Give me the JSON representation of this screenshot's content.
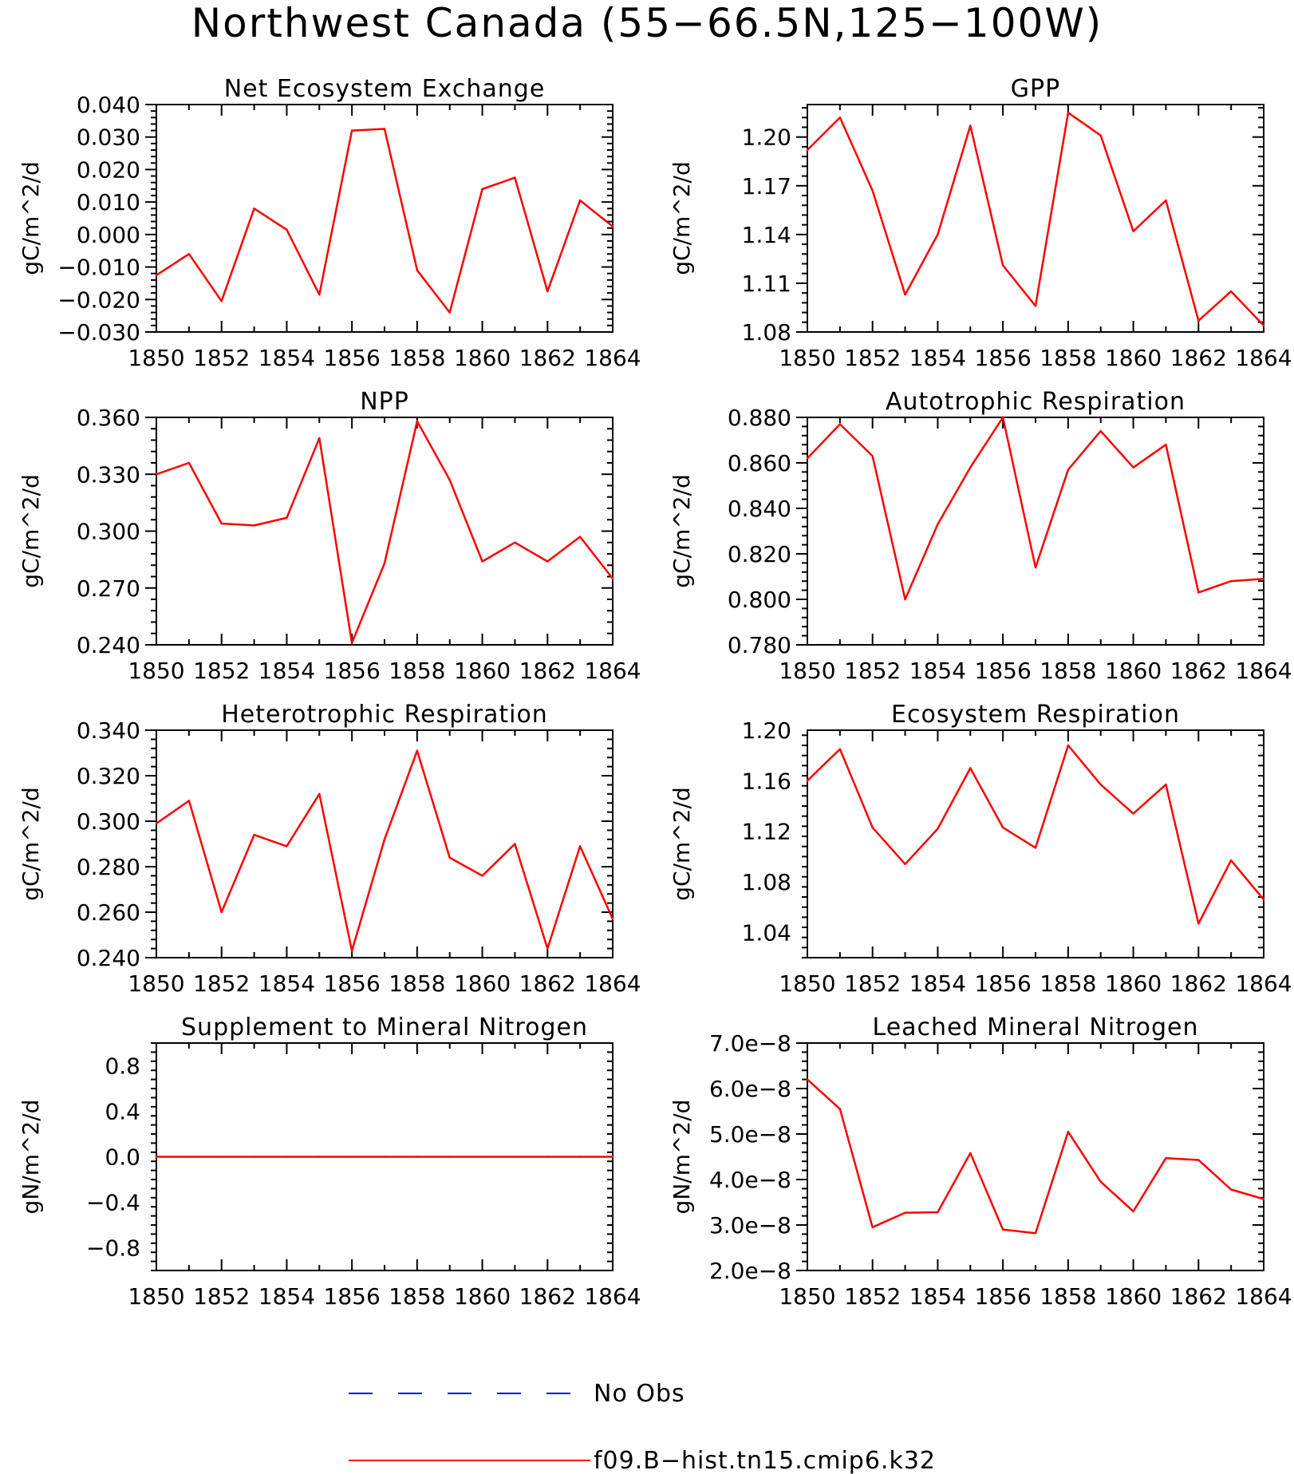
{
  "title": "Northwest Canada (55−66.5N,125−100W)",
  "colors": {
    "model": "#ff0000",
    "obs": "#0000ff",
    "axes": "#000000"
  },
  "legend": {
    "obs_label": "No Obs",
    "model_label": "f09.B−hist.tn15.cmip6.k32"
  },
  "chart_data": [
    {
      "type": "line",
      "title": "Net Ecosystem Exchange",
      "ylabel": "gC/m^2/d",
      "x": [
        1850,
        1851,
        1852,
        1853,
        1854,
        1855,
        1856,
        1857,
        1858,
        1859,
        1860,
        1861,
        1862,
        1863,
        1864
      ],
      "xticks": [
        1850,
        1852,
        1854,
        1856,
        1858,
        1860,
        1862,
        1864
      ],
      "xtick_labels": [
        "1850",
        "1852",
        "1854",
        "1856",
        "1858",
        "1860",
        "1862",
        "1864"
      ],
      "xlim": [
        1850,
        1864
      ],
      "ylim": [
        -0.03,
        0.04
      ],
      "yticks": [
        -0.03,
        -0.02,
        -0.01,
        0.0,
        0.01,
        0.02,
        0.03,
        0.04
      ],
      "ytick_labels": [
        "−0.030",
        "−0.020",
        "−0.010",
        "0.000",
        "0.010",
        "0.020",
        "0.030",
        "0.040"
      ],
      "series": [
        {
          "values": [
            -0.0125,
            -0.006,
            -0.0205,
            0.008,
            0.0015,
            -0.0185,
            0.032,
            0.0325,
            -0.011,
            -0.024,
            0.014,
            0.0175,
            -0.0175,
            0.0105,
            0.0025
          ]
        }
      ]
    },
    {
      "type": "line",
      "title": "GPP",
      "ylabel": "gC/m^2/d",
      "x": [
        1850,
        1851,
        1852,
        1853,
        1854,
        1855,
        1856,
        1857,
        1858,
        1859,
        1860,
        1861,
        1862,
        1863,
        1864
      ],
      "xticks": [
        1850,
        1852,
        1854,
        1856,
        1858,
        1860,
        1862,
        1864
      ],
      "xtick_labels": [
        "1850",
        "1852",
        "1854",
        "1856",
        "1858",
        "1860",
        "1862",
        "1864"
      ],
      "xlim": [
        1850,
        1864
      ],
      "ylim": [
        1.08,
        1.22
      ],
      "yticks": [
        1.08,
        1.11,
        1.14,
        1.17,
        1.2
      ],
      "ytick_labels": [
        "1.08",
        "1.11",
        "1.14",
        "1.17",
        "1.20"
      ],
      "series": [
        {
          "values": [
            1.192,
            1.212,
            1.167,
            1.103,
            1.14,
            1.207,
            1.121,
            1.096,
            1.215,
            1.201,
            1.142,
            1.161,
            1.087,
            1.105,
            1.084
          ]
        }
      ]
    },
    {
      "type": "line",
      "title": "NPP",
      "ylabel": "gC/m^2/d",
      "x": [
        1850,
        1851,
        1852,
        1853,
        1854,
        1855,
        1856,
        1857,
        1858,
        1859,
        1860,
        1861,
        1862,
        1863,
        1864
      ],
      "xticks": [
        1850,
        1852,
        1854,
        1856,
        1858,
        1860,
        1862,
        1864
      ],
      "xtick_labels": [
        "1850",
        "1852",
        "1854",
        "1856",
        "1858",
        "1860",
        "1862",
        "1864"
      ],
      "xlim": [
        1850,
        1864
      ],
      "ylim": [
        0.24,
        0.36
      ],
      "yticks": [
        0.24,
        0.27,
        0.3,
        0.33,
        0.36
      ],
      "ytick_labels": [
        "0.240",
        "0.270",
        "0.300",
        "0.330",
        "0.360"
      ],
      "series": [
        {
          "values": [
            0.33,
            0.336,
            0.304,
            0.303,
            0.307,
            0.349,
            0.241,
            0.283,
            0.358,
            0.327,
            0.284,
            0.294,
            0.284,
            0.297,
            0.275
          ]
        }
      ]
    },
    {
      "type": "line",
      "title": "Autotrophic Respiration",
      "ylabel": "gC/m^2/d",
      "x": [
        1850,
        1851,
        1852,
        1853,
        1854,
        1855,
        1856,
        1857,
        1858,
        1859,
        1860,
        1861,
        1862,
        1863,
        1864
      ],
      "xticks": [
        1850,
        1852,
        1854,
        1856,
        1858,
        1860,
        1862,
        1864
      ],
      "xtick_labels": [
        "1850",
        "1852",
        "1854",
        "1856",
        "1858",
        "1860",
        "1862",
        "1864"
      ],
      "xlim": [
        1850,
        1864
      ],
      "ylim": [
        0.78,
        0.88
      ],
      "yticks": [
        0.78,
        0.8,
        0.82,
        0.84,
        0.86,
        0.88
      ],
      "ytick_labels": [
        "0.780",
        "0.800",
        "0.820",
        "0.840",
        "0.860",
        "0.880"
      ],
      "series": [
        {
          "values": [
            0.862,
            0.877,
            0.863,
            0.8,
            0.833,
            0.858,
            0.88,
            0.814,
            0.857,
            0.874,
            0.858,
            0.868,
            0.803,
            0.808,
            0.809
          ]
        }
      ]
    },
    {
      "type": "line",
      "title": "Heterotrophic Respiration",
      "ylabel": "gC/m^2/d",
      "x": [
        1850,
        1851,
        1852,
        1853,
        1854,
        1855,
        1856,
        1857,
        1858,
        1859,
        1860,
        1861,
        1862,
        1863,
        1864
      ],
      "xticks": [
        1850,
        1852,
        1854,
        1856,
        1858,
        1860,
        1862,
        1864
      ],
      "xtick_labels": [
        "1850",
        "1852",
        "1854",
        "1856",
        "1858",
        "1860",
        "1862",
        "1864"
      ],
      "xlim": [
        1850,
        1864
      ],
      "ylim": [
        0.24,
        0.34
      ],
      "yticks": [
        0.24,
        0.26,
        0.28,
        0.3,
        0.32,
        0.34
      ],
      "ytick_labels": [
        "0.240",
        "0.260",
        "0.280",
        "0.300",
        "0.320",
        "0.340"
      ],
      "series": [
        {
          "values": [
            0.299,
            0.309,
            0.26,
            0.294,
            0.289,
            0.312,
            0.243,
            0.292,
            0.331,
            0.284,
            0.276,
            0.29,
            0.244,
            0.289,
            0.257
          ]
        }
      ]
    },
    {
      "type": "line",
      "title": "Ecosystem Respiration",
      "ylabel": "gC/m^2/d",
      "x": [
        1850,
        1851,
        1852,
        1853,
        1854,
        1855,
        1856,
        1857,
        1858,
        1859,
        1860,
        1861,
        1862,
        1863,
        1864
      ],
      "xticks": [
        1850,
        1852,
        1854,
        1856,
        1858,
        1860,
        1862,
        1864
      ],
      "xtick_labels": [
        "1850",
        "1852",
        "1854",
        "1856",
        "1858",
        "1860",
        "1862",
        "1864"
      ],
      "xlim": [
        1850,
        1864
      ],
      "ylim": [
        1.02,
        1.2
      ],
      "yticks": [
        1.04,
        1.08,
        1.12,
        1.16,
        1.2
      ],
      "ytick_labels": [
        "1.04",
        "1.08",
        "1.12",
        "1.16",
        "1.20"
      ],
      "series": [
        {
          "values": [
            1.16,
            1.185,
            1.123,
            1.094,
            1.122,
            1.17,
            1.123,
            1.107,
            1.188,
            1.157,
            1.134,
            1.157,
            1.047,
            1.097,
            1.066
          ]
        }
      ]
    },
    {
      "type": "line",
      "title": "Supplement to Mineral Nitrogen",
      "ylabel": "gN/m^2/d",
      "x": [
        1850,
        1851,
        1852,
        1853,
        1854,
        1855,
        1856,
        1857,
        1858,
        1859,
        1860,
        1861,
        1862,
        1863,
        1864
      ],
      "xticks": [
        1850,
        1852,
        1854,
        1856,
        1858,
        1860,
        1862,
        1864
      ],
      "xtick_labels": [
        "1850",
        "1852",
        "1854",
        "1856",
        "1858",
        "1860",
        "1862",
        "1864"
      ],
      "xlim": [
        1850,
        1864
      ],
      "ylim": [
        -1.0,
        1.0
      ],
      "yticks": [
        -0.8,
        -0.4,
        0.0,
        0.4,
        0.8
      ],
      "ytick_labels": [
        "−0.8",
        "−0.4",
        "0.0",
        "0.4",
        "0.8"
      ],
      "series": [
        {
          "values": [
            0,
            0,
            0,
            0,
            0,
            0,
            0,
            0,
            0,
            0,
            0,
            0,
            0,
            0,
            0
          ]
        }
      ]
    },
    {
      "type": "line",
      "title": "Leached Mineral Nitrogen",
      "ylabel": "gN/m^2/d",
      "x": [
        1850,
        1851,
        1852,
        1853,
        1854,
        1855,
        1856,
        1857,
        1858,
        1859,
        1860,
        1861,
        1862,
        1863,
        1864
      ],
      "xticks": [
        1850,
        1852,
        1854,
        1856,
        1858,
        1860,
        1862,
        1864
      ],
      "xtick_labels": [
        "1850",
        "1852",
        "1854",
        "1856",
        "1858",
        "1860",
        "1862",
        "1864"
      ],
      "xlim": [
        1850,
        1864
      ],
      "ylim": [
        2e-08,
        7e-08
      ],
      "yticks": [
        2e-08,
        3e-08,
        4e-08,
        5e-08,
        6e-08,
        7e-08
      ],
      "ytick_labels": [
        "2.0e−8",
        "3.0e−8",
        "4.0e−8",
        "5.0e−8",
        "6.0e−8",
        "7.0e−8"
      ],
      "series": [
        {
          "values": [
            6.2e-08,
            5.55e-08,
            2.95e-08,
            3.27e-08,
            3.28e-08,
            4.58e-08,
            2.9e-08,
            2.82e-08,
            5.05e-08,
            3.95e-08,
            3.3e-08,
            4.47e-08,
            4.43e-08,
            3.78e-08,
            3.57e-08
          ]
        }
      ]
    }
  ]
}
